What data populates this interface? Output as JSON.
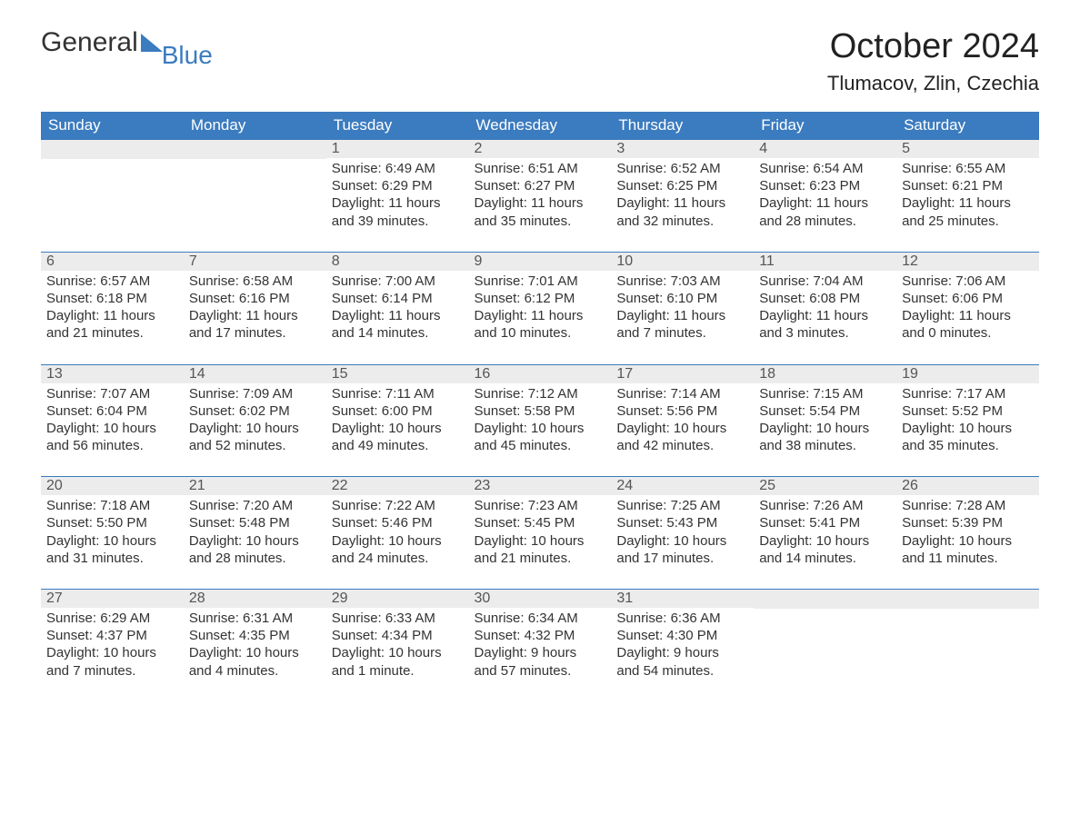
{
  "logo": {
    "text1": "General",
    "text2": "Blue",
    "icon_color": "#3b7bbf",
    "text1_color": "#333333",
    "text2_color": "#3b7bbf"
  },
  "title": "October 2024",
  "location": "Tlumacov, Zlin, Czechia",
  "header_bg": "#3b7bbf",
  "header_fg": "#ffffff",
  "daynum_bg": "#ececec",
  "daynum_border": "#3b7bbf",
  "text_color": "#333333",
  "weekdays": [
    "Sunday",
    "Monday",
    "Tuesday",
    "Wednesday",
    "Thursday",
    "Friday",
    "Saturday"
  ],
  "weeks": [
    [
      null,
      null,
      {
        "n": "1",
        "sr": "Sunrise: 6:49 AM",
        "ss": "Sunset: 6:29 PM",
        "dl1": "Daylight: 11 hours",
        "dl2": "and 39 minutes."
      },
      {
        "n": "2",
        "sr": "Sunrise: 6:51 AM",
        "ss": "Sunset: 6:27 PM",
        "dl1": "Daylight: 11 hours",
        "dl2": "and 35 minutes."
      },
      {
        "n": "3",
        "sr": "Sunrise: 6:52 AM",
        "ss": "Sunset: 6:25 PM",
        "dl1": "Daylight: 11 hours",
        "dl2": "and 32 minutes."
      },
      {
        "n": "4",
        "sr": "Sunrise: 6:54 AM",
        "ss": "Sunset: 6:23 PM",
        "dl1": "Daylight: 11 hours",
        "dl2": "and 28 minutes."
      },
      {
        "n": "5",
        "sr": "Sunrise: 6:55 AM",
        "ss": "Sunset: 6:21 PM",
        "dl1": "Daylight: 11 hours",
        "dl2": "and 25 minutes."
      }
    ],
    [
      {
        "n": "6",
        "sr": "Sunrise: 6:57 AM",
        "ss": "Sunset: 6:18 PM",
        "dl1": "Daylight: 11 hours",
        "dl2": "and 21 minutes."
      },
      {
        "n": "7",
        "sr": "Sunrise: 6:58 AM",
        "ss": "Sunset: 6:16 PM",
        "dl1": "Daylight: 11 hours",
        "dl2": "and 17 minutes."
      },
      {
        "n": "8",
        "sr": "Sunrise: 7:00 AM",
        "ss": "Sunset: 6:14 PM",
        "dl1": "Daylight: 11 hours",
        "dl2": "and 14 minutes."
      },
      {
        "n": "9",
        "sr": "Sunrise: 7:01 AM",
        "ss": "Sunset: 6:12 PM",
        "dl1": "Daylight: 11 hours",
        "dl2": "and 10 minutes."
      },
      {
        "n": "10",
        "sr": "Sunrise: 7:03 AM",
        "ss": "Sunset: 6:10 PM",
        "dl1": "Daylight: 11 hours",
        "dl2": "and 7 minutes."
      },
      {
        "n": "11",
        "sr": "Sunrise: 7:04 AM",
        "ss": "Sunset: 6:08 PM",
        "dl1": "Daylight: 11 hours",
        "dl2": "and 3 minutes."
      },
      {
        "n": "12",
        "sr": "Sunrise: 7:06 AM",
        "ss": "Sunset: 6:06 PM",
        "dl1": "Daylight: 11 hours",
        "dl2": "and 0 minutes."
      }
    ],
    [
      {
        "n": "13",
        "sr": "Sunrise: 7:07 AM",
        "ss": "Sunset: 6:04 PM",
        "dl1": "Daylight: 10 hours",
        "dl2": "and 56 minutes."
      },
      {
        "n": "14",
        "sr": "Sunrise: 7:09 AM",
        "ss": "Sunset: 6:02 PM",
        "dl1": "Daylight: 10 hours",
        "dl2": "and 52 minutes."
      },
      {
        "n": "15",
        "sr": "Sunrise: 7:11 AM",
        "ss": "Sunset: 6:00 PM",
        "dl1": "Daylight: 10 hours",
        "dl2": "and 49 minutes."
      },
      {
        "n": "16",
        "sr": "Sunrise: 7:12 AM",
        "ss": "Sunset: 5:58 PM",
        "dl1": "Daylight: 10 hours",
        "dl2": "and 45 minutes."
      },
      {
        "n": "17",
        "sr": "Sunrise: 7:14 AM",
        "ss": "Sunset: 5:56 PM",
        "dl1": "Daylight: 10 hours",
        "dl2": "and 42 minutes."
      },
      {
        "n": "18",
        "sr": "Sunrise: 7:15 AM",
        "ss": "Sunset: 5:54 PM",
        "dl1": "Daylight: 10 hours",
        "dl2": "and 38 minutes."
      },
      {
        "n": "19",
        "sr": "Sunrise: 7:17 AM",
        "ss": "Sunset: 5:52 PM",
        "dl1": "Daylight: 10 hours",
        "dl2": "and 35 minutes."
      }
    ],
    [
      {
        "n": "20",
        "sr": "Sunrise: 7:18 AM",
        "ss": "Sunset: 5:50 PM",
        "dl1": "Daylight: 10 hours",
        "dl2": "and 31 minutes."
      },
      {
        "n": "21",
        "sr": "Sunrise: 7:20 AM",
        "ss": "Sunset: 5:48 PM",
        "dl1": "Daylight: 10 hours",
        "dl2": "and 28 minutes."
      },
      {
        "n": "22",
        "sr": "Sunrise: 7:22 AM",
        "ss": "Sunset: 5:46 PM",
        "dl1": "Daylight: 10 hours",
        "dl2": "and 24 minutes."
      },
      {
        "n": "23",
        "sr": "Sunrise: 7:23 AM",
        "ss": "Sunset: 5:45 PM",
        "dl1": "Daylight: 10 hours",
        "dl2": "and 21 minutes."
      },
      {
        "n": "24",
        "sr": "Sunrise: 7:25 AM",
        "ss": "Sunset: 5:43 PM",
        "dl1": "Daylight: 10 hours",
        "dl2": "and 17 minutes."
      },
      {
        "n": "25",
        "sr": "Sunrise: 7:26 AM",
        "ss": "Sunset: 5:41 PM",
        "dl1": "Daylight: 10 hours",
        "dl2": "and 14 minutes."
      },
      {
        "n": "26",
        "sr": "Sunrise: 7:28 AM",
        "ss": "Sunset: 5:39 PM",
        "dl1": "Daylight: 10 hours",
        "dl2": "and 11 minutes."
      }
    ],
    [
      {
        "n": "27",
        "sr": "Sunrise: 6:29 AM",
        "ss": "Sunset: 4:37 PM",
        "dl1": "Daylight: 10 hours",
        "dl2": "and 7 minutes."
      },
      {
        "n": "28",
        "sr": "Sunrise: 6:31 AM",
        "ss": "Sunset: 4:35 PM",
        "dl1": "Daylight: 10 hours",
        "dl2": "and 4 minutes."
      },
      {
        "n": "29",
        "sr": "Sunrise: 6:33 AM",
        "ss": "Sunset: 4:34 PM",
        "dl1": "Daylight: 10 hours",
        "dl2": "and 1 minute."
      },
      {
        "n": "30",
        "sr": "Sunrise: 6:34 AM",
        "ss": "Sunset: 4:32 PM",
        "dl1": "Daylight: 9 hours",
        "dl2": "and 57 minutes."
      },
      {
        "n": "31",
        "sr": "Sunrise: 6:36 AM",
        "ss": "Sunset: 4:30 PM",
        "dl1": "Daylight: 9 hours",
        "dl2": "and 54 minutes."
      },
      null,
      null
    ]
  ]
}
